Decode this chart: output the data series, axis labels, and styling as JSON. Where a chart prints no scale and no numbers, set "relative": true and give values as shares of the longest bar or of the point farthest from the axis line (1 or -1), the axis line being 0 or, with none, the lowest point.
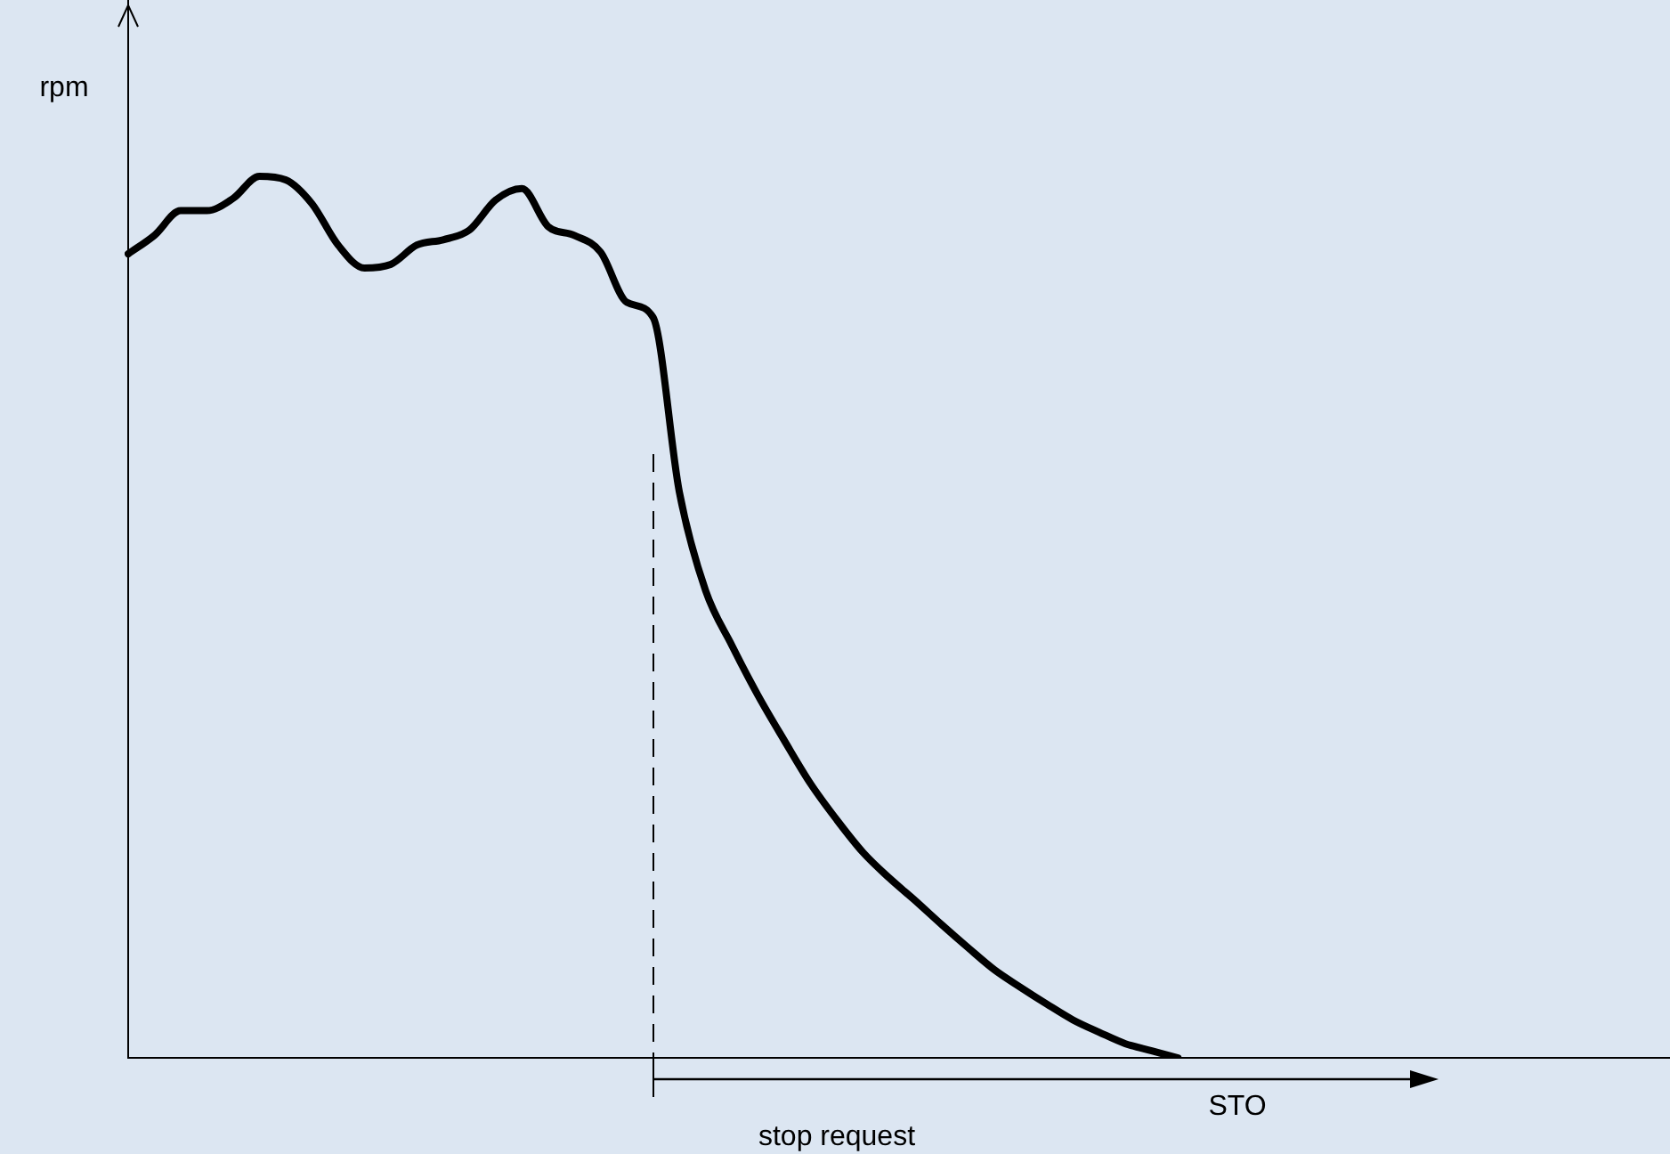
{
  "chart_data": {
    "type": "line",
    "relative": true,
    "ylabel": "rpm",
    "grid": false,
    "legend": false,
    "marker": "none",
    "line_style": "solid",
    "categories": [
      null,
      null,
      null,
      null,
      null,
      null,
      null,
      null,
      null,
      null,
      null,
      null,
      null,
      null,
      null,
      null,
      null,
      null,
      null,
      null,
      null,
      null,
      null,
      null,
      null,
      null,
      null,
      null,
      null,
      null,
      null,
      null,
      null,
      null,
      null,
      null,
      null,
      null,
      null,
      null,
      null,
      null,
      null,
      null,
      null,
      null,
      null,
      null,
      null,
      null,
      null,
      null,
      null,
      null,
      null,
      null,
      null,
      null,
      null
    ],
    "series": [
      {
        "color": "#000000",
        "values": [
          0.912,
          0.933,
          0.961,
          0.961,
          0.975,
          1.0,
          0.996,
          0.969,
          0.922,
          0.896,
          0.9,
          0.922,
          0.928,
          0.939,
          0.973,
          0.986,
          0.943,
          0.933,
          0.914,
          0.857,
          0.84,
          0.642,
          0.53,
          0.468,
          0.411,
          0.36,
          0.311,
          0.27,
          0.233,
          0.204,
          0.178,
          0.151,
          0.125,
          0.1,
          0.08,
          0.061,
          0.043,
          0.029,
          0.016,
          0.008,
          0,
          null,
          null,
          null,
          null,
          null,
          null,
          null,
          null,
          null,
          null,
          null,
          null,
          null,
          null,
          null,
          null,
          null,
          null
        ]
      }
    ],
    "annotations": [
      "stop request",
      "STO"
    ]
  }
}
